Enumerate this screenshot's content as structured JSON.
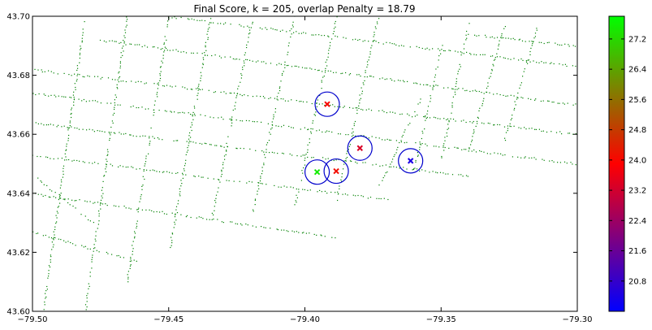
{
  "chart_data": {
    "type": "scatter",
    "title": "Final Score, k = 205, overlap Penalty = 18.79",
    "xlabel": "",
    "ylabel": "",
    "xlim": [
      -79.5,
      -79.3
    ],
    "ylim": [
      43.6,
      43.7
    ],
    "x_ticks": [
      -79.5,
      -79.45,
      -79.4,
      -79.35,
      -79.3
    ],
    "x_tick_labels": [
      "−79.50",
      "−79.45",
      "−79.40",
      "−79.35",
      "−79.30"
    ],
    "y_ticks": [
      43.6,
      43.62,
      43.64,
      43.66,
      43.68,
      43.7
    ],
    "y_tick_labels": [
      "43.60",
      "43.62",
      "43.64",
      "43.66",
      "43.68",
      "43.70"
    ],
    "grid": false,
    "background_points_color": "#008000",
    "street_grid": {
      "ns_streets": [
        {
          "x1": -79.4962,
          "y1": 43.6,
          "x2": -79.4808,
          "y2": 43.7
        },
        {
          "x1": -79.4808,
          "y1": 43.6,
          "x2": -79.4654,
          "y2": 43.7
        },
        {
          "x1": -79.4654,
          "y1": 43.61,
          "x2": -79.45,
          "y2": 43.7
        },
        {
          "x1": -79.45,
          "y1": 43.62,
          "x2": -79.4346,
          "y2": 43.7
        },
        {
          "x1": -79.4346,
          "y1": 43.63,
          "x2": -79.4192,
          "y2": 43.7
        },
        {
          "x1": -79.4192,
          "y1": 43.634,
          "x2": -79.4038,
          "y2": 43.7
        },
        {
          "x1": -79.4038,
          "y1": 43.636,
          "x2": -79.3885,
          "y2": 43.7
        },
        {
          "x1": -79.3885,
          "y1": 43.638,
          "x2": -79.3731,
          "y2": 43.7
        },
        {
          "x1": -79.3731,
          "y1": 43.642,
          "x2": -79.3577,
          "y2": 43.672
        },
        {
          "x1": -79.36,
          "y1": 43.648,
          "x2": -79.35,
          "y2": 43.69
        },
        {
          "x1": -79.35,
          "y1": 43.652,
          "x2": -79.34,
          "y2": 43.698
        },
        {
          "x1": -79.34,
          "y1": 43.655,
          "x2": -79.3269,
          "y2": 43.697
        },
        {
          "x1": -79.3269,
          "y1": 43.658,
          "x2": -79.315,
          "y2": 43.696
        }
      ],
      "ew_streets": [
        {
          "x1": -79.5,
          "y1": 43.64,
          "x2": -79.388,
          "y2": 43.625
        },
        {
          "x1": -79.5,
          "y1": 43.653,
          "x2": -79.37,
          "y2": 43.638
        },
        {
          "x1": -79.5,
          "y1": 43.664,
          "x2": -79.34,
          "y2": 43.646
        },
        {
          "x1": -79.5,
          "y1": 43.674,
          "x2": -79.3,
          "y2": 43.65
        },
        {
          "x1": -79.5,
          "y1": 43.682,
          "x2": -79.3,
          "y2": 43.66
        },
        {
          "x1": -79.475,
          "y1": 43.692,
          "x2": -79.3,
          "y2": 43.67
        },
        {
          "x1": -79.45,
          "y1": 43.7,
          "x2": -79.3,
          "y2": 43.683
        },
        {
          "x1": -79.34,
          "y1": 43.694,
          "x2": -79.3,
          "y2": 43.69
        }
      ],
      "diagonals": [
        {
          "x1": -79.5,
          "y1": 43.627,
          "x2": -79.462,
          "y2": 43.617
        },
        {
          "x1": -79.498,
          "y1": 43.645,
          "x2": -79.478,
          "y2": 43.63
        }
      ]
    },
    "cluster_centers": [
      {
        "x": -79.3918,
        "y": 43.6702,
        "value": 24.0
      },
      {
        "x": -79.3798,
        "y": 43.6553,
        "value": 23.3
      },
      {
        "x": -79.3885,
        "y": 43.6475,
        "value": 24.1
      },
      {
        "x": -79.3955,
        "y": 43.6472,
        "value": 27.5
      },
      {
        "x": -79.3612,
        "y": 43.651,
        "value": 20.4
      }
    ],
    "circle_color": "#0000cc",
    "colorbar": {
      "min": 20.0,
      "max": 27.8,
      "ticks": [
        20.8,
        21.6,
        22.4,
        23.2,
        24.0,
        24.8,
        25.6,
        26.4,
        27.2
      ],
      "tick_labels": [
        "20.8",
        "21.6",
        "22.4",
        "23.2",
        "24.0",
        "24.8",
        "25.6",
        "26.4",
        "27.2"
      ],
      "color_stops": [
        "#0000ff",
        "#ff0000",
        "#00ff00"
      ]
    }
  }
}
